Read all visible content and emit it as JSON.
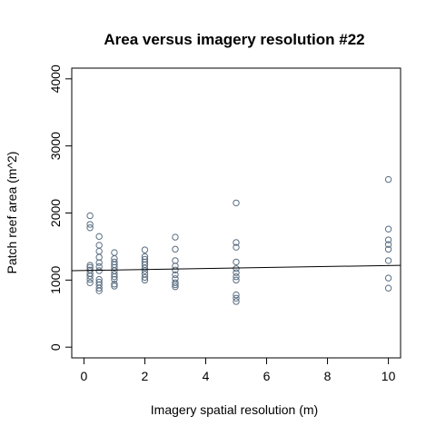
{
  "chart_data": {
    "type": "scatter",
    "title": "Area versus imagery resolution #22",
    "xlabel": "Imagery spatial resolution (m)",
    "ylabel": "Patch reef area (m^2)",
    "xlim": [
      -0.4,
      10.4
    ],
    "ylim": [
      -160,
      4160
    ],
    "xticks": [
      0,
      2,
      4,
      6,
      8,
      10
    ],
    "yticks": [
      0,
      1000,
      2000,
      3000,
      4000
    ],
    "point_color": "#5a6e82",
    "line_color": "#000000",
    "grid": false,
    "legend": "none",
    "points": [
      {
        "x": 0.2,
        "y": 1960
      },
      {
        "x": 0.2,
        "y": 1830
      },
      {
        "x": 0.2,
        "y": 1780
      },
      {
        "x": 0.2,
        "y": 1220
      },
      {
        "x": 0.2,
        "y": 1190
      },
      {
        "x": 0.2,
        "y": 1150
      },
      {
        "x": 0.2,
        "y": 1100
      },
      {
        "x": 0.2,
        "y": 1060
      },
      {
        "x": 0.2,
        "y": 1010
      },
      {
        "x": 0.2,
        "y": 960
      },
      {
        "x": 0.5,
        "y": 1650
      },
      {
        "x": 0.5,
        "y": 1520
      },
      {
        "x": 0.5,
        "y": 1430
      },
      {
        "x": 0.5,
        "y": 1340
      },
      {
        "x": 0.5,
        "y": 1260
      },
      {
        "x": 0.5,
        "y": 1200
      },
      {
        "x": 0.5,
        "y": 1140
      },
      {
        "x": 0.5,
        "y": 1010
      },
      {
        "x": 0.5,
        "y": 970
      },
      {
        "x": 0.5,
        "y": 930
      },
      {
        "x": 0.5,
        "y": 880
      },
      {
        "x": 0.5,
        "y": 840
      },
      {
        "x": 1,
        "y": 1410
      },
      {
        "x": 1,
        "y": 1320
      },
      {
        "x": 1,
        "y": 1270
      },
      {
        "x": 1,
        "y": 1230
      },
      {
        "x": 1,
        "y": 1190
      },
      {
        "x": 1,
        "y": 1140
      },
      {
        "x": 1,
        "y": 1090
      },
      {
        "x": 1,
        "y": 1050
      },
      {
        "x": 1,
        "y": 1010
      },
      {
        "x": 1,
        "y": 940
      },
      {
        "x": 1,
        "y": 910
      },
      {
        "x": 2,
        "y": 1450
      },
      {
        "x": 2,
        "y": 1350
      },
      {
        "x": 2,
        "y": 1310
      },
      {
        "x": 2,
        "y": 1270
      },
      {
        "x": 2,
        "y": 1230
      },
      {
        "x": 2,
        "y": 1180
      },
      {
        "x": 2,
        "y": 1140
      },
      {
        "x": 2,
        "y": 1090
      },
      {
        "x": 2,
        "y": 1040
      },
      {
        "x": 2,
        "y": 1000
      },
      {
        "x": 3,
        "y": 1640
      },
      {
        "x": 3,
        "y": 1460
      },
      {
        "x": 3,
        "y": 1290
      },
      {
        "x": 3,
        "y": 1210
      },
      {
        "x": 3,
        "y": 1150
      },
      {
        "x": 3,
        "y": 1080
      },
      {
        "x": 3,
        "y": 1020
      },
      {
        "x": 3,
        "y": 960
      },
      {
        "x": 3,
        "y": 930
      },
      {
        "x": 3,
        "y": 900
      },
      {
        "x": 5,
        "y": 2150
      },
      {
        "x": 5,
        "y": 1560
      },
      {
        "x": 5,
        "y": 1490
      },
      {
        "x": 5,
        "y": 1270
      },
      {
        "x": 5,
        "y": 1170
      },
      {
        "x": 5,
        "y": 1110
      },
      {
        "x": 5,
        "y": 1050
      },
      {
        "x": 5,
        "y": 1000
      },
      {
        "x": 5,
        "y": 780
      },
      {
        "x": 5,
        "y": 730
      },
      {
        "x": 5,
        "y": 680
      },
      {
        "x": 10,
        "y": 2500
      },
      {
        "x": 10,
        "y": 1760
      },
      {
        "x": 10,
        "y": 1600
      },
      {
        "x": 10,
        "y": 1530
      },
      {
        "x": 10,
        "y": 1460
      },
      {
        "x": 10,
        "y": 1290
      },
      {
        "x": 10,
        "y": 1030
      },
      {
        "x": 10,
        "y": 880
      }
    ],
    "regression_line": {
      "x": [
        -0.4,
        10.4
      ],
      "y": [
        1140,
        1220
      ]
    }
  }
}
